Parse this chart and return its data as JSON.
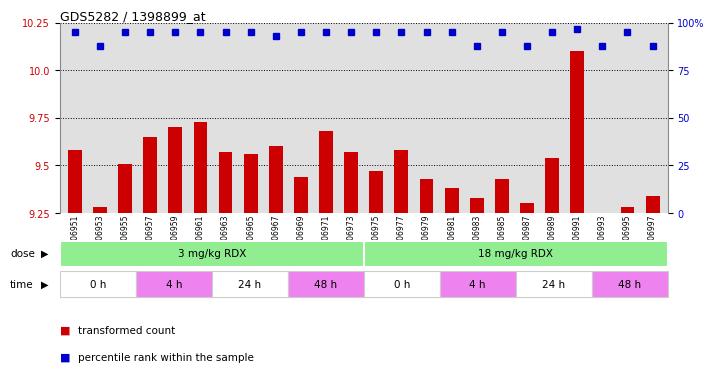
{
  "title": "GDS5282 / 1398899_at",
  "samples": [
    "GSM306951",
    "GSM306953",
    "GSM306955",
    "GSM306957",
    "GSM306959",
    "GSM306961",
    "GSM306963",
    "GSM306965",
    "GSM306967",
    "GSM306969",
    "GSM306971",
    "GSM306973",
    "GSM306975",
    "GSM306977",
    "GSM306979",
    "GSM306981",
    "GSM306983",
    "GSM306985",
    "GSM306987",
    "GSM306989",
    "GSM306991",
    "GSM306993",
    "GSM306995",
    "GSM306997"
  ],
  "transformed_count": [
    9.58,
    9.28,
    9.51,
    9.65,
    9.7,
    9.73,
    9.57,
    9.56,
    9.6,
    9.44,
    9.68,
    9.57,
    9.47,
    9.58,
    9.43,
    9.38,
    9.33,
    9.43,
    9.3,
    9.54,
    10.1,
    9.25,
    9.28,
    9.34
  ],
  "percentile_rank": [
    95,
    88,
    95,
    95,
    95,
    95,
    95,
    95,
    93,
    95,
    95,
    95,
    95,
    95,
    95,
    95,
    88,
    95,
    88,
    95,
    97,
    88,
    95,
    88
  ],
  "ylim_left": [
    9.25,
    10.25
  ],
  "ylim_right": [
    0,
    100
  ],
  "yticks_left": [
    9.25,
    9.5,
    9.75,
    10.0,
    10.25
  ],
  "yticks_right": [
    0,
    25,
    50,
    75,
    100
  ],
  "bar_color": "#cc0000",
  "dot_color": "#0000cc",
  "dose_groups": [
    {
      "label": "3 mg/kg RDX",
      "start": 0,
      "end": 12,
      "color": "#90EE90"
    },
    {
      "label": "18 mg/kg RDX",
      "start": 12,
      "end": 24,
      "color": "#90EE90"
    }
  ],
  "time_groups": [
    {
      "label": "0 h",
      "start": 0,
      "end": 3,
      "color": "#ffffff"
    },
    {
      "label": "4 h",
      "start": 3,
      "end": 6,
      "color": "#ee82ee"
    },
    {
      "label": "24 h",
      "start": 6,
      "end": 9,
      "color": "#ffffff"
    },
    {
      "label": "48 h",
      "start": 9,
      "end": 12,
      "color": "#ee82ee"
    },
    {
      "label": "0 h",
      "start": 12,
      "end": 15,
      "color": "#ffffff"
    },
    {
      "label": "4 h",
      "start": 15,
      "end": 18,
      "color": "#ee82ee"
    },
    {
      "label": "24 h",
      "start": 18,
      "end": 21,
      "color": "#ffffff"
    },
    {
      "label": "48 h",
      "start": 21,
      "end": 24,
      "color": "#ee82ee"
    }
  ],
  "legend_items": [
    {
      "label": "transformed count",
      "color": "#cc0000"
    },
    {
      "label": "percentile rank within the sample",
      "color": "#0000cc"
    }
  ],
  "background_color": "#ffffff",
  "plot_bg_color": "#e0e0e0"
}
